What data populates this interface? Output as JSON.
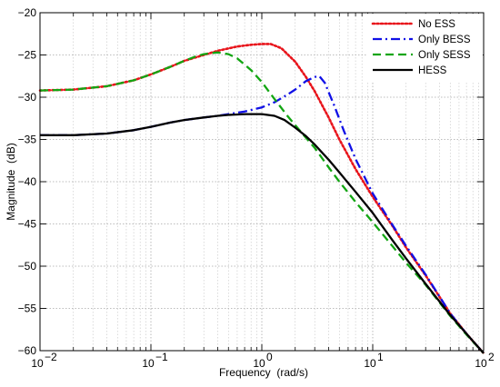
{
  "chart_data": {
    "type": "line",
    "title": "",
    "xlabel": "Frequency  (rad/s)",
    "ylabel": "Magnitude  (dB)",
    "x_scale": "log",
    "xlim": [
      0.01,
      100
    ],
    "ylim": [
      -60,
      -20
    ],
    "grid": true,
    "legend_position": "top-right",
    "x_ticks": [
      {
        "base": "10",
        "exp": "−2",
        "value": 0.01
      },
      {
        "base": "10",
        "exp": "−1",
        "value": 0.1
      },
      {
        "base": "10",
        "exp": "0",
        "value": 1
      },
      {
        "base": "10",
        "exp": "1",
        "value": 10
      },
      {
        "base": "10",
        "exp": "2",
        "value": 100
      }
    ],
    "y_ticks": [
      {
        "label": "−20",
        "value": -20
      },
      {
        "label": "−25",
        "value": -25
      },
      {
        "label": "−30",
        "value": -30
      },
      {
        "label": "−35",
        "value": -35
      },
      {
        "label": "−40",
        "value": -40
      },
      {
        "label": "−45",
        "value": -45
      },
      {
        "label": "−50",
        "value": -50
      },
      {
        "label": "−55",
        "value": -55
      },
      {
        "label": "−60",
        "value": -60
      }
    ],
    "series": [
      {
        "name": "No ESS",
        "color": "#e8141b",
        "style": "dotted",
        "x": [
          0.01,
          0.02,
          0.04,
          0.07,
          0.1,
          0.15,
          0.2,
          0.3,
          0.4,
          0.6,
          0.8,
          1.0,
          1.2,
          1.5,
          2.0,
          2.5,
          3.0,
          4.0,
          5.0,
          7.0,
          10,
          15,
          20,
          30,
          50,
          70,
          100
        ],
        "y": [
          -29.2,
          -29.1,
          -28.7,
          -28.0,
          -27.3,
          -26.4,
          -25.7,
          -25.0,
          -24.5,
          -24.0,
          -23.8,
          -23.7,
          -23.7,
          -24.2,
          -25.8,
          -27.6,
          -29.3,
          -32.4,
          -35.0,
          -38.5,
          -41.8,
          -45.2,
          -47.8,
          -51.1,
          -55.6,
          -58.0,
          -60.3
        ]
      },
      {
        "name": "Only BESS",
        "color": "#1010e6",
        "style": "dashdot",
        "x": [
          0.01,
          0.02,
          0.04,
          0.07,
          0.1,
          0.15,
          0.2,
          0.3,
          0.4,
          0.5,
          0.7,
          1.0,
          1.3,
          1.7,
          2.0,
          2.5,
          3.0,
          3.3,
          3.7,
          4.5,
          5.5,
          7.0,
          10,
          15,
          20,
          30,
          50,
          70,
          100
        ],
        "y": [
          -34.5,
          -34.5,
          -34.3,
          -33.9,
          -33.5,
          -33.0,
          -32.7,
          -32.4,
          -32.2,
          -32.0,
          -31.7,
          -31.2,
          -30.6,
          -29.7,
          -29.1,
          -28.1,
          -27.6,
          -27.5,
          -28.3,
          -31.0,
          -34.0,
          -37.3,
          -41.4,
          -45.1,
          -47.6,
          -51.0,
          -55.6,
          -58.0,
          -60.3
        ]
      },
      {
        "name": "Only SESS",
        "color": "#12a512",
        "style": "dashed",
        "x": [
          0.01,
          0.02,
          0.04,
          0.07,
          0.1,
          0.15,
          0.2,
          0.25,
          0.3,
          0.4,
          0.5,
          0.6,
          0.8,
          1.0,
          1.3,
          1.7,
          2.0,
          2.5,
          3.0,
          4.0,
          5.0,
          7.0,
          10,
          15,
          20,
          30,
          50,
          70,
          100
        ],
        "y": [
          -29.2,
          -29.1,
          -28.7,
          -28.0,
          -27.3,
          -26.4,
          -25.7,
          -25.2,
          -24.9,
          -24.7,
          -24.9,
          -25.4,
          -26.8,
          -28.2,
          -30.2,
          -32.2,
          -33.3,
          -34.8,
          -36.0,
          -38.3,
          -40.0,
          -42.4,
          -44.8,
          -47.6,
          -49.6,
          -52.2,
          -55.9,
          -58.1,
          -60.3
        ]
      },
      {
        "name": "HESS",
        "color": "#000000",
        "style": "solid",
        "x": [
          0.01,
          0.02,
          0.04,
          0.07,
          0.1,
          0.15,
          0.2,
          0.3,
          0.4,
          0.5,
          0.7,
          1.0,
          1.3,
          1.6,
          2.0,
          2.5,
          3.0,
          4.0,
          5.0,
          7.0,
          10,
          15,
          20,
          30,
          50,
          70,
          100
        ],
        "y": [
          -34.5,
          -34.5,
          -34.3,
          -33.9,
          -33.5,
          -33.0,
          -32.7,
          -32.4,
          -32.2,
          -32.1,
          -32.0,
          -32.0,
          -32.2,
          -32.7,
          -33.6,
          -34.6,
          -35.6,
          -37.4,
          -38.9,
          -41.2,
          -43.7,
          -46.9,
          -49.1,
          -52.1,
          -55.8,
          -58.0,
          -60.3
        ]
      }
    ]
  }
}
